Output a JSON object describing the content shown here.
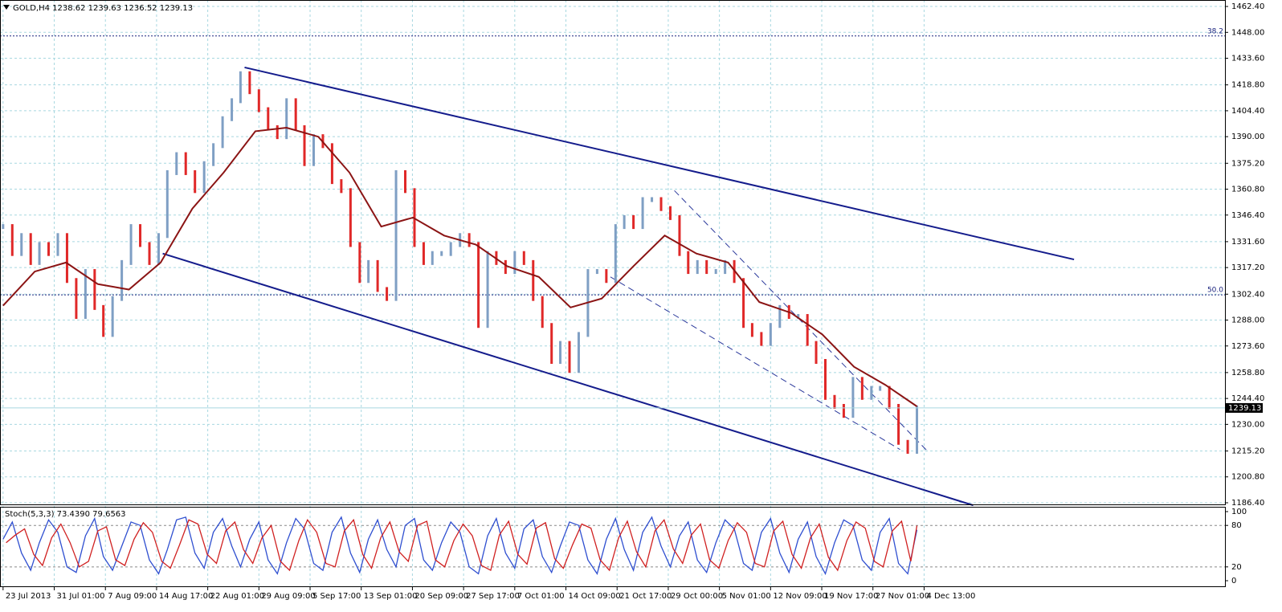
{
  "chart_data": [
    {
      "type": "line",
      "title": "GOLD,H4  1238.62 1239.63 1236.52 1239.13",
      "categories": [
        "23 Jul 2013",
        "31 Jul 01:00",
        "7 Aug 09:00",
        "14 Aug 17:00",
        "22 Aug 01:00",
        "29 Aug 09:00",
        "5 Sep 17:00",
        "13 Sep 01:00",
        "20 Sep 09:00",
        "27 Sep 17:00",
        "7 Oct 01:00",
        "14 Oct 09:00",
        "21 Oct 17:00",
        "29 Oct 00:00",
        "5 Nov 01:00",
        "12 Nov 09:00",
        "19 Nov 17:00",
        "27 Nov 01:00",
        "4 Dec 13:00"
      ],
      "xlim": [
        -0.06,
        23.88
      ],
      "ylim": [
        1185.5,
        1466.0
      ],
      "yticks": [
        {
          "value": 1462.4,
          "label": "1462.40"
        },
        {
          "value": 1448,
          "label": "1448.00"
        },
        {
          "value": 1433.6,
          "label": "1433.60"
        },
        {
          "value": 1418.8,
          "label": "1418.80"
        },
        {
          "value": 1404.4,
          "label": "1404.40"
        },
        {
          "value": 1390,
          "label": "1390.00"
        },
        {
          "value": 1375.2,
          "label": "1375.20"
        },
        {
          "value": 1360.8,
          "label": "1360.80"
        },
        {
          "value": 1346.4,
          "label": "1346.40"
        },
        {
          "value": 1331.6,
          "label": "1331.60"
        },
        {
          "value": 1317.2,
          "label": "1317.20"
        },
        {
          "value": 1302.4,
          "label": "1302.40"
        },
        {
          "value": 1288,
          "label": "1288.00"
        },
        {
          "value": 1273.6,
          "label": "1273.60"
        },
        {
          "value": 1258.8,
          "label": "1258.80"
        },
        {
          "value": 1244.4,
          "label": "1244.40"
        },
        {
          "value": 1230,
          "label": "1230.00"
        },
        {
          "value": 1215.2,
          "label": "1215.20"
        },
        {
          "value": 1200.8,
          "label": "1200.80"
        },
        {
          "value": 1186.4,
          "label": "1186.40"
        }
      ],
      "grid": true,
      "current_price": 1239.13,
      "price": {
        "up_color": "#7f9fc4",
        "down_color": "#e02828",
        "x": [
          0,
          0.18,
          0.36,
          0.54,
          0.71,
          0.89,
          1.07,
          1.25,
          1.43,
          1.61,
          1.79,
          1.96,
          2.14,
          2.32,
          2.5,
          2.68,
          2.86,
          3.04,
          3.21,
          3.39,
          3.57,
          3.75,
          3.93,
          4.11,
          4.29,
          4.47,
          4.64,
          4.82,
          5,
          5.18,
          5.36,
          5.54,
          5.72,
          5.89,
          6.07,
          6.25,
          6.43,
          6.61,
          6.79,
          6.97,
          7.14,
          7.32,
          7.5,
          7.68,
          7.86,
          8.04,
          8.22,
          8.39,
          8.57,
          8.75,
          8.93,
          9.11,
          9.29,
          9.47,
          9.64,
          9.82,
          10,
          10.18,
          10.36,
          10.54,
          10.72,
          10.89,
          11.07,
          11.25,
          11.43,
          11.61,
          11.79,
          11.97,
          12.14,
          12.32,
          12.5,
          12.68,
          12.86,
          13.04,
          13.22,
          13.39,
          13.57,
          13.75,
          13.93,
          14.11,
          14.29,
          14.47,
          14.64,
          14.82,
          15,
          15.18,
          15.36,
          15.54,
          15.72,
          15.89,
          16.07,
          16.25,
          16.43,
          16.61,
          16.79,
          16.97,
          17.14,
          17.32,
          17.5,
          17.68,
          17.86
        ],
        "values": [
          1340,
          1325,
          1335,
          1320,
          1330,
          1325,
          1335,
          1310,
          1290,
          1315,
          1295,
          1280,
          1300,
          1320,
          1340,
          1330,
          1320,
          1335,
          1370,
          1380,
          1370,
          1360,
          1375,
          1385,
          1400,
          1410,
          1425,
          1415,
          1405,
          1395,
          1390,
          1410,
          1395,
          1375,
          1390,
          1385,
          1365,
          1360,
          1330,
          1310,
          1320,
          1305,
          1300,
          1370,
          1360,
          1330,
          1320,
          1325,
          1325,
          1330,
          1335,
          1330,
          1285,
          1325,
          1320,
          1315,
          1325,
          1320,
          1300,
          1285,
          1265,
          1275,
          1260,
          1280,
          1315,
          1315,
          1310,
          1340,
          1345,
          1340,
          1355,
          1355,
          1350,
          1345,
          1325,
          1315,
          1320,
          1315,
          1315,
          1320,
          1310,
          1285,
          1280,
          1275,
          1285,
          1295,
          1290,
          1290,
          1275,
          1265,
          1245,
          1240,
          1235,
          1255,
          1245,
          1250,
          1250,
          1240,
          1220,
          1215,
          1239.13
        ]
      },
      "ma": {
        "color": "#8b1414",
        "x": [
          0,
          0.62,
          1.23,
          1.85,
          2.46,
          3.08,
          3.7,
          4.31,
          4.93,
          5.54,
          6.16,
          6.77,
          7.39,
          8.01,
          8.62,
          9.24,
          9.85,
          10.47,
          11.09,
          11.7,
          12.32,
          12.93,
          13.55,
          14.17,
          14.78,
          15.4,
          16.01,
          16.63,
          17.24,
          17.86
        ],
        "values": [
          1296,
          1315,
          1320,
          1308,
          1305,
          1320,
          1350,
          1370,
          1393,
          1395,
          1390,
          1370,
          1340,
          1345,
          1335,
          1330,
          1318,
          1312,
          1295,
          1300,
          1318,
          1335,
          1325,
          1320,
          1298,
          1292,
          1280,
          1262,
          1252,
          1240
        ]
      },
      "levels": [
        {
          "label": "38.2",
          "value": 1446
        },
        {
          "label": "50.0",
          "value": 1302
        }
      ],
      "level_color": "#1a237e",
      "lines": [
        {
          "x": [
            4.72,
            20.93
          ],
          "values": [
            1428.5,
            1321.7
          ],
          "color": "#141c8c",
          "dashed": false
        },
        {
          "x": [
            3.12,
            18.96
          ],
          "values": [
            1325,
            1185
          ],
          "color": "#141c8c",
          "dashed": false
        },
        {
          "x": [
            13.12,
            18.07
          ],
          "values": [
            1360,
            1215
          ],
          "color": "#2c3a9c",
          "dashed": true
        },
        {
          "x": [
            11.87,
            17.53
          ],
          "values": [
            1312,
            1216
          ],
          "color": "#2c3a9c",
          "dashed": true
        }
      ]
    },
    {
      "type": "line",
      "title": "Stoch(5,3,3) 73.4390 79.6563",
      "xlim": [
        -0.06,
        23.88
      ],
      "ylim": [
        -8.1,
        105.8
      ],
      "yticks": [
        100,
        80,
        20,
        0
      ],
      "levels": [
        80,
        20
      ],
      "main": {
        "color": "#2f4fd0",
        "x": [
          0,
          0.18,
          0.36,
          0.54,
          0.71,
          0.89,
          1.07,
          1.25,
          1.43,
          1.61,
          1.79,
          1.96,
          2.14,
          2.32,
          2.5,
          2.68,
          2.86,
          3.04,
          3.21,
          3.39,
          3.57,
          3.75,
          3.93,
          4.11,
          4.29,
          4.47,
          4.64,
          4.82,
          5,
          5.18,
          5.36,
          5.54,
          5.72,
          5.89,
          6.07,
          6.25,
          6.43,
          6.61,
          6.79,
          6.97,
          7.14,
          7.32,
          7.5,
          7.68,
          7.86,
          8.04,
          8.22,
          8.39,
          8.57,
          8.75,
          8.93,
          9.11,
          9.29,
          9.47,
          9.64,
          9.82,
          10,
          10.18,
          10.36,
          10.54,
          10.72,
          10.89,
          11.07,
          11.25,
          11.43,
          11.61,
          11.79,
          11.97,
          12.14,
          12.32,
          12.5,
          12.68,
          12.86,
          13.04,
          13.22,
          13.39,
          13.57,
          13.75,
          13.93,
          14.11,
          14.29,
          14.47,
          14.64,
          14.82,
          15,
          15.18,
          15.36,
          15.54,
          15.72,
          15.89,
          16.07,
          16.25,
          16.43,
          16.61,
          16.79,
          16.97,
          17.14,
          17.32,
          17.5,
          17.68,
          17.86
        ],
        "values": [
          60,
          85,
          40,
          15,
          55,
          88,
          70,
          20,
          12,
          65,
          90,
          35,
          15,
          50,
          85,
          80,
          30,
          10,
          45,
          88,
          92,
          40,
          18,
          70,
          90,
          50,
          20,
          60,
          85,
          30,
          10,
          55,
          90,
          75,
          25,
          15,
          70,
          92,
          40,
          12,
          60,
          88,
          45,
          20,
          80,
          90,
          30,
          15,
          55,
          85,
          70,
          20,
          10,
          65,
          90,
          40,
          18,
          75,
          88,
          35,
          12,
          50,
          85,
          80,
          30,
          10,
          60,
          90,
          45,
          15,
          70,
          92,
          50,
          20,
          65,
          85,
          30,
          12,
          55,
          88,
          75,
          25,
          15,
          70,
          90,
          40,
          12,
          60,
          85,
          35,
          10,
          55,
          88,
          80,
          30,
          15,
          70,
          90,
          25,
          10,
          73.439
        ]
      },
      "signal": {
        "color": "#d02020",
        "x": [
          0.06,
          0.24,
          0.42,
          0.6,
          0.77,
          0.95,
          1.13,
          1.31,
          1.49,
          1.67,
          1.85,
          2.02,
          2.2,
          2.38,
          2.56,
          2.74,
          2.92,
          3.1,
          3.27,
          3.45,
          3.63,
          3.81,
          3.99,
          4.17,
          4.35,
          4.53,
          4.7,
          4.88,
          5.06,
          5.24,
          5.42,
          5.6,
          5.78,
          5.95,
          6.13,
          6.31,
          6.49,
          6.67,
          6.85,
          7.03,
          7.2,
          7.38,
          7.56,
          7.74,
          7.92,
          8.1,
          8.28,
          8.45,
          8.63,
          8.81,
          8.99,
          9.17,
          9.35,
          9.53,
          9.7,
          9.88,
          10.06,
          10.24,
          10.42,
          10.6,
          10.78,
          10.95,
          11.13,
          11.31,
          11.49,
          11.67,
          11.85,
          12.03,
          12.2,
          12.38,
          12.56,
          12.74,
          12.92,
          13.1,
          13.28,
          13.45,
          13.63,
          13.81,
          13.99,
          14.17,
          14.35,
          14.53,
          14.7,
          14.88,
          15.06,
          15.24,
          15.42,
          15.6,
          15.78,
          15.95,
          16.13,
          16.31,
          16.49,
          16.67,
          16.85,
          17.03,
          17.2,
          17.38,
          17.56,
          17.74,
          17.86
        ],
        "values": [
          55,
          66,
          75,
          38,
          22,
          62,
          82,
          55,
          20,
          28,
          72,
          78,
          30,
          22,
          60,
          84,
          70,
          28,
          18,
          52,
          88,
          82,
          38,
          25,
          72,
          85,
          45,
          25,
          62,
          80,
          28,
          15,
          58,
          88,
          70,
          25,
          20,
          72,
          88,
          38,
          18,
          62,
          85,
          42,
          28,
          80,
          86,
          30,
          20,
          58,
          82,
          65,
          22,
          15,
          66,
          86,
          38,
          24,
          76,
          84,
          32,
          18,
          52,
          82,
          76,
          30,
          15,
          62,
          86,
          42,
          20,
          72,
          88,
          46,
          25,
          66,
          82,
          30,
          18,
          58,
          84,
          70,
          25,
          20,
          72,
          86,
          38,
          18,
          62,
          82,
          34,
          15,
          58,
          85,
          76,
          28,
          20,
          72,
          86,
          28,
          79.6563
        ]
      }
    }
  ]
}
